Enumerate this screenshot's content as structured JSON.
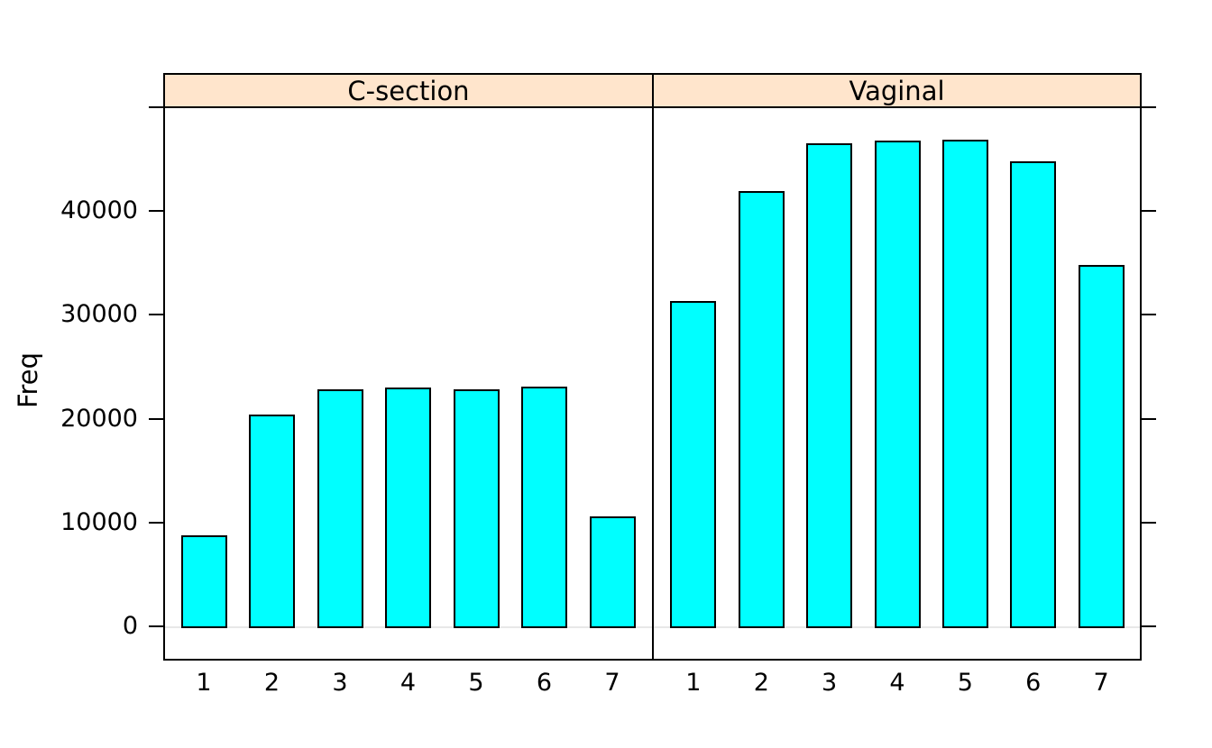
{
  "chart_data": {
    "type": "bar",
    "layout": "lattice-two-panel",
    "title": "",
    "ylabel": "Freq",
    "xlabel": "",
    "categories": [
      "1",
      "2",
      "3",
      "4",
      "5",
      "6",
      "7"
    ],
    "panels": [
      {
        "label": "C-section",
        "values": [
          8800,
          20400,
          22800,
          23000,
          22800,
          23100,
          10600
        ]
      },
      {
        "label": "Vaginal",
        "values": [
          31300,
          41900,
          46500,
          46800,
          46900,
          44800,
          34800
        ]
      }
    ],
    "yticks_labeled": [
      0,
      10000,
      20000,
      30000,
      40000
    ],
    "ytick_labels": [
      "0",
      "10000",
      "20000",
      "30000",
      "40000"
    ],
    "yticks_unlabeled": [
      50000
    ],
    "ylim": [
      -3300,
      50100
    ],
    "grid": "off",
    "legend": "none",
    "baseline_value": 0
  },
  "colors": {
    "bar_fill": "#00FFFF",
    "bar_border": "#000000",
    "strip_background": "#FFE5CC",
    "panel_border": "#000000",
    "baseline_line": "#E8E8E8",
    "text": "#000000",
    "background": "#FFFFFF"
  }
}
